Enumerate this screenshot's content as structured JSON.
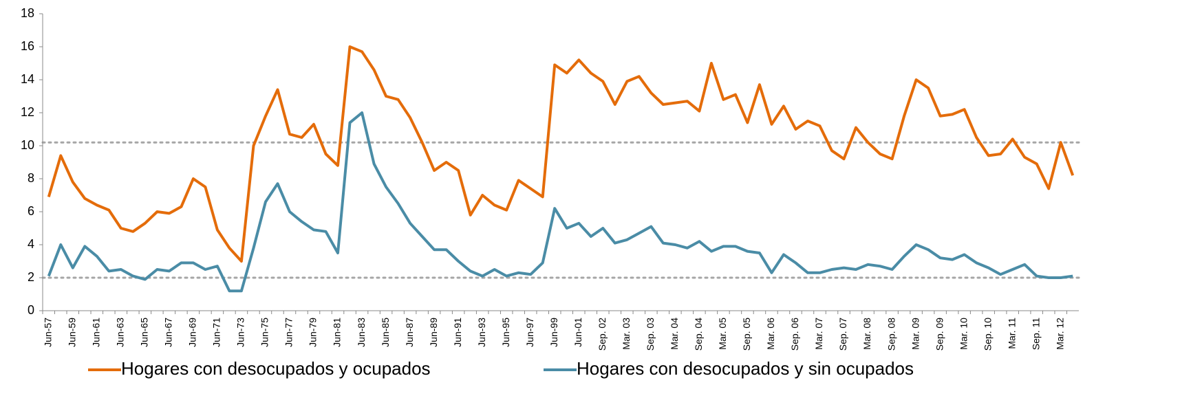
{
  "chart_data": {
    "type": "line",
    "categories": [
      "Jun-57",
      null,
      "Jun-59",
      null,
      "Jun-61",
      null,
      "Jun-63",
      null,
      "Jun-65",
      null,
      "Jun-67",
      null,
      "Jun-69",
      null,
      "Jun-71",
      null,
      "Jun-73",
      null,
      "Jun-75",
      null,
      "Jun-77",
      null,
      "Jun-79",
      null,
      "Jun-81",
      null,
      "Jun-83",
      null,
      "Jun-85",
      null,
      "Jun-87",
      null,
      "Jun-89",
      null,
      "Jun-91",
      null,
      "Jun-93",
      null,
      "Jun-95",
      null,
      "Jun-97",
      null,
      "Jun-99",
      null,
      "Jun-01",
      null,
      "Sep. 02",
      null,
      "Mar. 03",
      null,
      "Sep. 03",
      null,
      "Mar. 04",
      null,
      "Sep. 04",
      null,
      "Mar. 05",
      null,
      "Sep. 05",
      null,
      "Mar. 06",
      null,
      "Sep. 06",
      null,
      "Mar. 07",
      null,
      "Sep. 07",
      null,
      "Mar. 08",
      null,
      "Sep. 08",
      null,
      "Mar. 09",
      null,
      "Sep. 09",
      null,
      "Mar. 10",
      null,
      "Sep. 10",
      null,
      "Mar. 11",
      null,
      "Sep. 11",
      null,
      "Mar. 12",
      null
    ],
    "series": [
      {
        "name": "Hogares con desocupados y ocupados",
        "color": "#e46c0a",
        "values": [
          6.9,
          9.4,
          7.8,
          6.8,
          6.4,
          6.1,
          5.0,
          4.8,
          5.3,
          6.0,
          5.9,
          6.3,
          8.0,
          7.5,
          4.9,
          3.8,
          3.0,
          10.0,
          11.8,
          13.4,
          10.7,
          10.5,
          11.3,
          9.5,
          8.8,
          16.0,
          15.7,
          14.6,
          13.0,
          12.8,
          11.7,
          10.2,
          8.5,
          9.0,
          8.5,
          5.8,
          7.0,
          6.4,
          6.1,
          7.9,
          7.4,
          6.9,
          14.9,
          14.4,
          15.2,
          14.4,
          13.9,
          12.5,
          13.9,
          14.2,
          13.2,
          12.5,
          12.6,
          12.7,
          12.1,
          15.0,
          12.8,
          13.1,
          11.4,
          13.7,
          11.3,
          12.4,
          11.0,
          11.5,
          11.2,
          9.7,
          9.2,
          11.1,
          10.2,
          9.5,
          9.2,
          11.8,
          14.0,
          13.5,
          11.8,
          11.9,
          12.2,
          10.5,
          9.4,
          9.5,
          10.4,
          9.3,
          8.9,
          7.4,
          10.2,
          8.2
        ]
      },
      {
        "name": "Hogares con desocupados y sin ocupados",
        "color": "#4a8ca6",
        "values": [
          2.1,
          4.0,
          2.6,
          3.9,
          3.3,
          2.4,
          2.5,
          2.1,
          1.9,
          2.5,
          2.4,
          2.9,
          2.9,
          2.5,
          2.7,
          1.2,
          1.2,
          3.8,
          6.6,
          7.7,
          6.0,
          5.4,
          4.9,
          4.8,
          3.5,
          11.4,
          12.0,
          8.9,
          7.5,
          6.5,
          5.3,
          4.5,
          3.7,
          3.7,
          3.0,
          2.4,
          2.1,
          2.5,
          2.1,
          2.3,
          2.2,
          2.9,
          6.2,
          5.0,
          5.3,
          4.5,
          5.0,
          4.1,
          4.3,
          4.7,
          5.1,
          4.1,
          4.0,
          3.8,
          4.2,
          3.6,
          3.9,
          3.9,
          3.6,
          3.5,
          2.3,
          3.4,
          2.9,
          2.3,
          2.3,
          2.5,
          2.6,
          2.5,
          2.8,
          2.7,
          2.5,
          3.3,
          4.0,
          3.7,
          3.2,
          3.1,
          3.4,
          2.9,
          2.6,
          2.2,
          2.5,
          2.8,
          2.1,
          2.0,
          2.0,
          2.1
        ]
      }
    ],
    "reference_lines": [
      10.2,
      2
    ],
    "ylim": [
      0,
      18
    ],
    "yticks": [
      0,
      2,
      4,
      6,
      8,
      10,
      12,
      14,
      16,
      18
    ],
    "grid": false,
    "legend": "bottom"
  }
}
